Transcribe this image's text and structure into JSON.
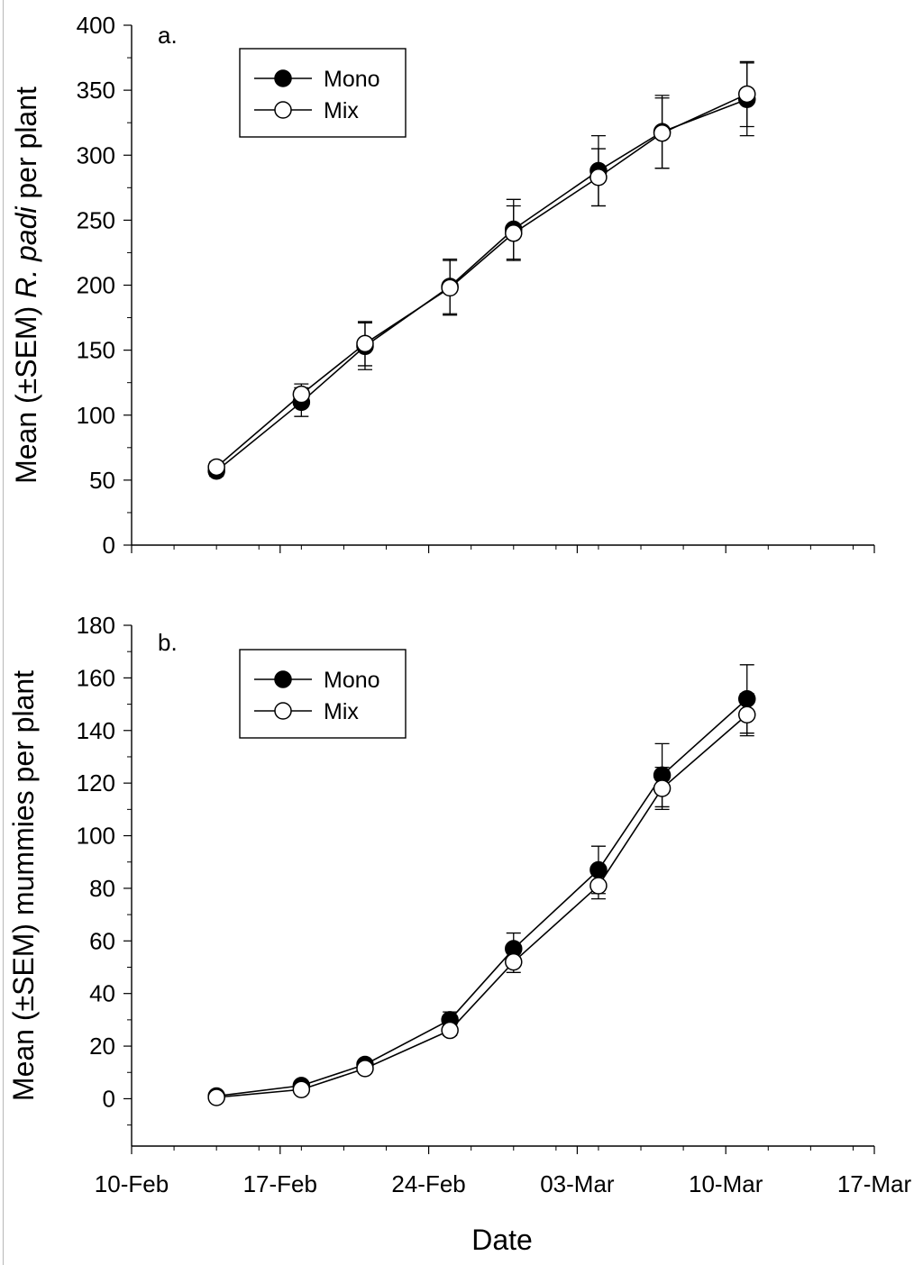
{
  "figure": {
    "xlabel": "Date",
    "x_tick_labels": [
      "10-Feb",
      "17-Feb",
      "24-Feb",
      "03-Mar",
      "10-Mar",
      "17-Mar"
    ]
  },
  "chart_data": [
    {
      "type": "line",
      "panel_label": "a.",
      "ylabel_pre": "Mean (±SEM) ",
      "ylabel_italic": "R. padi",
      "ylabel_post": " per plant",
      "x_day_ticks": [
        0,
        7,
        14,
        21,
        28,
        35
      ],
      "x_minor_every_days": 2,
      "x_range_days": [
        0,
        35
      ],
      "ylim": [
        0,
        400
      ],
      "y_ticks": [
        0,
        50,
        100,
        150,
        200,
        250,
        300,
        350,
        400
      ],
      "y_minor_step": 25,
      "x_days": [
        4,
        8,
        11,
        15,
        18,
        22,
        25,
        29
      ],
      "series": [
        {
          "name": "Mono",
          "marker": "filled",
          "values": [
            57,
            110,
            153,
            199,
            243,
            288,
            318,
            343
          ],
          "sem": [
            4,
            11,
            18,
            21,
            23,
            27,
            28,
            28
          ]
        },
        {
          "name": "Mix",
          "marker": "open",
          "values": [
            60,
            116,
            155,
            198,
            240,
            283,
            317,
            347
          ],
          "sem": [
            4,
            8,
            17,
            21,
            21,
            22,
            27,
            25
          ]
        }
      ],
      "legend": {
        "entries": [
          "Mono",
          "Mix"
        ],
        "position": "top-left"
      }
    },
    {
      "type": "line",
      "panel_label": "b.",
      "ylabel_pre": "Mean (±SEM) mummies per plant",
      "ylabel_italic": "",
      "ylabel_post": "",
      "x_day_ticks": [
        0,
        7,
        14,
        21,
        28,
        35
      ],
      "x_minor_every_days": 2,
      "x_range_days": [
        0,
        35
      ],
      "ylim": [
        -18,
        180
      ],
      "y_ticks": [
        0,
        20,
        40,
        60,
        80,
        100,
        120,
        140,
        160,
        180
      ],
      "y_minor_step": 10,
      "x_days": [
        4,
        8,
        11,
        15,
        18,
        22,
        25,
        29
      ],
      "series": [
        {
          "name": "Mono",
          "marker": "filled",
          "values": [
            1,
            5,
            13,
            30,
            57,
            87,
            123,
            152
          ],
          "sem": [
            0.5,
            1,
            1.5,
            3,
            6,
            9,
            12,
            13
          ]
        },
        {
          "name": "Mix",
          "marker": "open",
          "values": [
            0.5,
            3.5,
            11.5,
            26,
            52,
            81,
            118,
            146
          ],
          "sem": [
            0.5,
            1,
            1.5,
            2,
            4,
            5,
            8,
            8
          ]
        }
      ],
      "legend": {
        "entries": [
          "Mono",
          "Mix"
        ],
        "position": "top-left"
      }
    }
  ]
}
